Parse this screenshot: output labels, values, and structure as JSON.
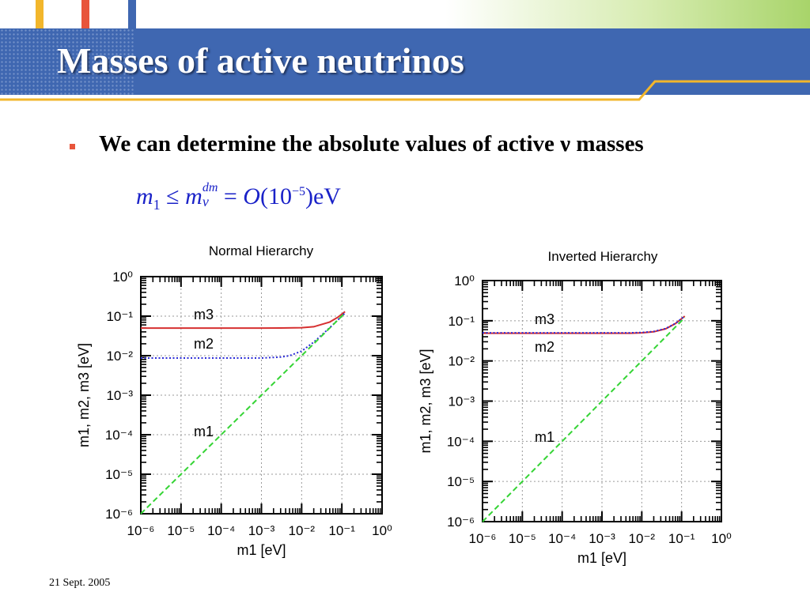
{
  "slide": {
    "title": "Masses of active neutrinos",
    "bullet": "We can determine the absolute values of active ν masses",
    "equation": {
      "lhs_symbol": "m",
      "lhs_subscript": "1",
      "relation": "≤",
      "rhs_symbol": "m",
      "rhs_superscript": "dm",
      "rhs_subscript": "ν",
      "equals": "=",
      "order_symbol": "O",
      "value_open": "(10",
      "exponent": "−5",
      "value_close": ")eV"
    },
    "footer": "21 Sept. 2005"
  },
  "colors": {
    "title_bar": "#3f67b1",
    "stripes": [
      "#f2b62b",
      "#e8553b",
      "#3f67b1"
    ],
    "bullet": "#e8553b",
    "equation": "#1a22c8",
    "m3": "#d63030",
    "m2": "#2b2bd8",
    "m1": "#35d435"
  },
  "chart_data": [
    {
      "type": "line",
      "title": "Normal Hierarchy",
      "xlabel": "m1 [eV]",
      "ylabel": "m1, m2, m3 [eV]",
      "xscale": "log",
      "yscale": "log",
      "xlim": [
        1e-06,
        1
      ],
      "ylim": [
        1e-06,
        1
      ],
      "grid": true,
      "tick_exponents": [
        -6,
        -5,
        -4,
        -3,
        -2,
        -1,
        0
      ],
      "series": [
        {
          "name": "m3",
          "style": "solid",
          "x": [
            1e-06,
            1e-05,
            0.0001,
            0.001,
            0.003,
            0.01,
            0.02,
            0.05,
            0.08,
            0.12
          ],
          "y": [
            0.05,
            0.05,
            0.05,
            0.05,
            0.0501,
            0.051,
            0.054,
            0.071,
            0.094,
            0.13
          ]
        },
        {
          "name": "m2",
          "style": "dotted",
          "x": [
            1e-06,
            1e-05,
            0.0001,
            0.001,
            0.003,
            0.005,
            0.01,
            0.02,
            0.05,
            0.12
          ],
          "y": [
            0.0087,
            0.0087,
            0.0087,
            0.0087,
            0.0092,
            0.01,
            0.013,
            0.022,
            0.051,
            0.12
          ]
        },
        {
          "name": "m1",
          "style": "dashed",
          "x": [
            1e-06,
            0.12
          ],
          "y": [
            1e-06,
            0.12
          ]
        }
      ]
    },
    {
      "type": "line",
      "title": "Inverted Hierarchy",
      "xlabel": "m1 [eV]",
      "ylabel": "m1, m2, m3 [eV]",
      "xscale": "log",
      "yscale": "log",
      "xlim": [
        1e-06,
        1
      ],
      "ylim": [
        1e-06,
        1
      ],
      "grid": true,
      "tick_exponents": [
        -6,
        -5,
        -4,
        -3,
        -2,
        -1,
        0
      ],
      "series": [
        {
          "name": "m3",
          "style": "solid",
          "x": [
            1e-06,
            0.0001,
            0.001,
            0.005,
            0.01,
            0.02,
            0.04,
            0.07,
            0.12
          ],
          "y": [
            0.049,
            0.049,
            0.049,
            0.049,
            0.05,
            0.053,
            0.063,
            0.085,
            0.13
          ]
        },
        {
          "name": "m2",
          "style": "dotted",
          "x": [
            1e-06,
            0.0001,
            0.001,
            0.005,
            0.01,
            0.02,
            0.04,
            0.07,
            0.12
          ],
          "y": [
            0.05,
            0.05,
            0.05,
            0.05,
            0.051,
            0.054,
            0.064,
            0.086,
            0.13
          ]
        },
        {
          "name": "m1",
          "style": "dashed",
          "x": [
            1e-06,
            0.12
          ],
          "y": [
            1e-06,
            0.12
          ]
        }
      ]
    }
  ]
}
